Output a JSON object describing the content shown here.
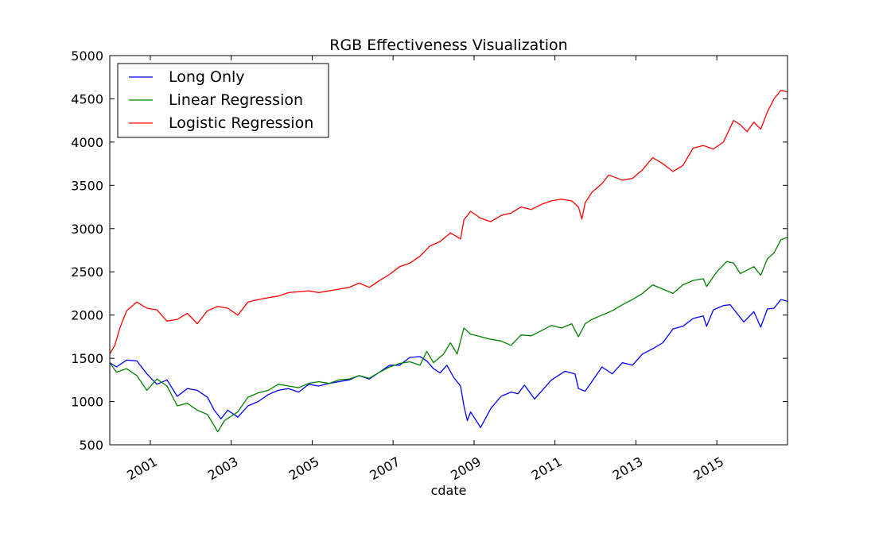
{
  "chart_data": {
    "type": "line",
    "title": "RGB Effectiveness Visualization",
    "xlabel": "cdate",
    "ylabel": "",
    "xlim": [
      "2000-01-01",
      "2016-09-30"
    ],
    "ylim": [
      500,
      5000
    ],
    "yticks": [
      500,
      1000,
      1500,
      2000,
      2500,
      3000,
      3500,
      4000,
      4500,
      5000
    ],
    "xticks": [
      "2001",
      "2003",
      "2005",
      "2007",
      "2009",
      "2011",
      "2013",
      "2015"
    ],
    "grid": false,
    "legend_position": "top-left",
    "series": [
      {
        "name": "Long Only",
        "color": "#0000ff",
        "points": [
          [
            "2000-01-01",
            1450
          ],
          [
            "2000-03-01",
            1400
          ],
          [
            "2000-06-01",
            1480
          ],
          [
            "2000-09-01",
            1470
          ],
          [
            "2000-12-01",
            1320
          ],
          [
            "2001-03-01",
            1200
          ],
          [
            "2001-06-01",
            1250
          ],
          [
            "2001-09-01",
            1060
          ],
          [
            "2001-12-01",
            1150
          ],
          [
            "2002-03-01",
            1130
          ],
          [
            "2002-06-01",
            1050
          ],
          [
            "2002-08-01",
            900
          ],
          [
            "2002-10-01",
            800
          ],
          [
            "2002-12-01",
            900
          ],
          [
            "2003-03-01",
            820
          ],
          [
            "2003-06-01",
            950
          ],
          [
            "2003-09-01",
            1000
          ],
          [
            "2003-12-01",
            1080
          ],
          [
            "2004-03-01",
            1130
          ],
          [
            "2004-06-01",
            1150
          ],
          [
            "2004-09-01",
            1110
          ],
          [
            "2004-12-01",
            1200
          ],
          [
            "2005-03-01",
            1180
          ],
          [
            "2005-06-01",
            1210
          ],
          [
            "2005-09-01",
            1230
          ],
          [
            "2005-12-01",
            1250
          ],
          [
            "2006-03-01",
            1300
          ],
          [
            "2006-06-01",
            1260
          ],
          [
            "2006-09-01",
            1340
          ],
          [
            "2006-12-01",
            1420
          ],
          [
            "2007-03-01",
            1420
          ],
          [
            "2007-06-01",
            1510
          ],
          [
            "2007-09-01",
            1520
          ],
          [
            "2007-11-01",
            1470
          ],
          [
            "2008-01-01",
            1380
          ],
          [
            "2008-03-01",
            1330
          ],
          [
            "2008-05-01",
            1420
          ],
          [
            "2008-07-01",
            1280
          ],
          [
            "2008-09-01",
            1180
          ],
          [
            "2008-10-01",
            950
          ],
          [
            "2008-11-01",
            780
          ],
          [
            "2008-12-01",
            880
          ],
          [
            "2009-03-01",
            700
          ],
          [
            "2009-06-01",
            920
          ],
          [
            "2009-09-01",
            1060
          ],
          [
            "2009-12-01",
            1110
          ],
          [
            "2010-02-01",
            1090
          ],
          [
            "2010-04-01",
            1190
          ],
          [
            "2010-07-01",
            1030
          ],
          [
            "2010-12-01",
            1250
          ],
          [
            "2011-04-01",
            1350
          ],
          [
            "2011-07-01",
            1320
          ],
          [
            "2011-08-01",
            1150
          ],
          [
            "2011-10-01",
            1120
          ],
          [
            "2012-03-01",
            1400
          ],
          [
            "2012-06-01",
            1320
          ],
          [
            "2012-09-01",
            1450
          ],
          [
            "2012-12-01",
            1420
          ],
          [
            "2013-03-01",
            1550
          ],
          [
            "2013-06-01",
            1610
          ],
          [
            "2013-09-01",
            1680
          ],
          [
            "2013-12-01",
            1840
          ],
          [
            "2014-03-01",
            1870
          ],
          [
            "2014-06-01",
            1960
          ],
          [
            "2014-09-01",
            1990
          ],
          [
            "2014-10-01",
            1870
          ],
          [
            "2014-12-01",
            2060
          ],
          [
            "2015-03-01",
            2110
          ],
          [
            "2015-05-01",
            2120
          ],
          [
            "2015-08-01",
            1970
          ],
          [
            "2015-09-01",
            1920
          ],
          [
            "2015-12-01",
            2040
          ],
          [
            "2016-02-01",
            1860
          ],
          [
            "2016-04-01",
            2070
          ],
          [
            "2016-06-01",
            2080
          ],
          [
            "2016-08-01",
            2180
          ],
          [
            "2016-09-30",
            2160
          ]
        ]
      },
      {
        "name": "Linear Regression",
        "color": "#008000",
        "points": [
          [
            "2000-01-01",
            1450
          ],
          [
            "2000-03-01",
            1340
          ],
          [
            "2000-06-01",
            1380
          ],
          [
            "2000-09-01",
            1300
          ],
          [
            "2000-12-01",
            1130
          ],
          [
            "2001-03-01",
            1260
          ],
          [
            "2001-06-01",
            1180
          ],
          [
            "2001-09-01",
            950
          ],
          [
            "2001-12-01",
            980
          ],
          [
            "2002-03-01",
            900
          ],
          [
            "2002-06-01",
            850
          ],
          [
            "2002-08-01",
            720
          ],
          [
            "2002-09-01",
            650
          ],
          [
            "2002-11-01",
            780
          ],
          [
            "2003-03-01",
            880
          ],
          [
            "2003-06-01",
            1050
          ],
          [
            "2003-09-01",
            1100
          ],
          [
            "2003-12-01",
            1130
          ],
          [
            "2004-03-01",
            1200
          ],
          [
            "2004-06-01",
            1180
          ],
          [
            "2004-09-01",
            1160
          ],
          [
            "2004-12-01",
            1210
          ],
          [
            "2005-03-01",
            1230
          ],
          [
            "2005-06-01",
            1210
          ],
          [
            "2005-09-01",
            1250
          ],
          [
            "2005-12-01",
            1260
          ],
          [
            "2006-03-01",
            1300
          ],
          [
            "2006-06-01",
            1270
          ],
          [
            "2006-09-01",
            1340
          ],
          [
            "2006-12-01",
            1400
          ],
          [
            "2007-03-01",
            1440
          ],
          [
            "2007-06-01",
            1460
          ],
          [
            "2007-09-01",
            1420
          ],
          [
            "2007-11-01",
            1580
          ],
          [
            "2008-01-01",
            1450
          ],
          [
            "2008-04-01",
            1550
          ],
          [
            "2008-06-01",
            1680
          ],
          [
            "2008-08-01",
            1550
          ],
          [
            "2008-10-01",
            1850
          ],
          [
            "2008-12-01",
            1780
          ],
          [
            "2009-03-01",
            1750
          ],
          [
            "2009-06-01",
            1720
          ],
          [
            "2009-09-01",
            1700
          ],
          [
            "2009-12-01",
            1650
          ],
          [
            "2010-03-01",
            1770
          ],
          [
            "2010-06-01",
            1760
          ],
          [
            "2010-09-01",
            1820
          ],
          [
            "2010-12-01",
            1880
          ],
          [
            "2011-03-01",
            1850
          ],
          [
            "2011-06-01",
            1900
          ],
          [
            "2011-08-01",
            1750
          ],
          [
            "2011-10-01",
            1900
          ],
          [
            "2011-12-01",
            1950
          ],
          [
            "2012-03-01",
            2000
          ],
          [
            "2012-06-01",
            2050
          ],
          [
            "2012-09-01",
            2120
          ],
          [
            "2012-12-01",
            2180
          ],
          [
            "2013-03-01",
            2250
          ],
          [
            "2013-06-01",
            2350
          ],
          [
            "2013-09-01",
            2300
          ],
          [
            "2013-12-01",
            2250
          ],
          [
            "2014-03-01",
            2350
          ],
          [
            "2014-06-01",
            2400
          ],
          [
            "2014-09-01",
            2420
          ],
          [
            "2014-10-01",
            2330
          ],
          [
            "2015-01-01",
            2500
          ],
          [
            "2015-04-01",
            2620
          ],
          [
            "2015-06-01",
            2600
          ],
          [
            "2015-08-01",
            2480
          ],
          [
            "2015-12-01",
            2560
          ],
          [
            "2016-02-01",
            2460
          ],
          [
            "2016-04-01",
            2650
          ],
          [
            "2016-06-01",
            2720
          ],
          [
            "2016-08-01",
            2870
          ],
          [
            "2016-09-30",
            2900
          ]
        ]
      },
      {
        "name": "Logistic Regression",
        "color": "#ff0000",
        "points": [
          [
            "2000-01-01",
            1550
          ],
          [
            "2000-02-15",
            1650
          ],
          [
            "2000-04-01",
            1850
          ],
          [
            "2000-06-01",
            2050
          ],
          [
            "2000-09-01",
            2150
          ],
          [
            "2000-12-01",
            2080
          ],
          [
            "2001-03-01",
            2060
          ],
          [
            "2001-06-01",
            1930
          ],
          [
            "2001-09-01",
            1950
          ],
          [
            "2001-12-01",
            2020
          ],
          [
            "2002-03-01",
            1900
          ],
          [
            "2002-06-01",
            2050
          ],
          [
            "2002-09-01",
            2100
          ],
          [
            "2002-12-01",
            2080
          ],
          [
            "2003-03-01",
            2000
          ],
          [
            "2003-06-01",
            2150
          ],
          [
            "2003-09-01",
            2180
          ],
          [
            "2003-12-01",
            2200
          ],
          [
            "2004-03-01",
            2220
          ],
          [
            "2004-06-01",
            2260
          ],
          [
            "2004-09-01",
            2270
          ],
          [
            "2004-12-01",
            2280
          ],
          [
            "2005-03-01",
            2260
          ],
          [
            "2005-06-01",
            2280
          ],
          [
            "2005-09-01",
            2300
          ],
          [
            "2005-12-01",
            2320
          ],
          [
            "2006-03-01",
            2370
          ],
          [
            "2006-06-01",
            2320
          ],
          [
            "2006-09-01",
            2400
          ],
          [
            "2006-12-01",
            2470
          ],
          [
            "2007-03-01",
            2560
          ],
          [
            "2007-06-01",
            2600
          ],
          [
            "2007-09-01",
            2680
          ],
          [
            "2007-12-01",
            2800
          ],
          [
            "2008-03-01",
            2850
          ],
          [
            "2008-06-01",
            2950
          ],
          [
            "2008-09-01",
            2880
          ],
          [
            "2008-10-01",
            3100
          ],
          [
            "2008-12-01",
            3200
          ],
          [
            "2009-03-01",
            3120
          ],
          [
            "2009-06-01",
            3080
          ],
          [
            "2009-09-01",
            3150
          ],
          [
            "2009-12-01",
            3180
          ],
          [
            "2010-03-01",
            3250
          ],
          [
            "2010-06-01",
            3220
          ],
          [
            "2010-09-01",
            3280
          ],
          [
            "2010-12-01",
            3320
          ],
          [
            "2011-03-01",
            3340
          ],
          [
            "2011-06-01",
            3320
          ],
          [
            "2011-08-01",
            3250
          ],
          [
            "2011-09-01",
            3110
          ],
          [
            "2011-10-01",
            3300
          ],
          [
            "2011-12-01",
            3420
          ],
          [
            "2012-03-01",
            3520
          ],
          [
            "2012-05-01",
            3620
          ],
          [
            "2012-09-01",
            3560
          ],
          [
            "2012-12-01",
            3580
          ],
          [
            "2013-03-01",
            3680
          ],
          [
            "2013-06-01",
            3820
          ],
          [
            "2013-09-01",
            3750
          ],
          [
            "2013-12-01",
            3660
          ],
          [
            "2014-03-01",
            3730
          ],
          [
            "2014-06-01",
            3930
          ],
          [
            "2014-09-01",
            3960
          ],
          [
            "2014-12-01",
            3920
          ],
          [
            "2015-03-01",
            4000
          ],
          [
            "2015-06-01",
            4250
          ],
          [
            "2015-08-01",
            4200
          ],
          [
            "2015-10-01",
            4120
          ],
          [
            "2015-12-01",
            4230
          ],
          [
            "2016-02-01",
            4150
          ],
          [
            "2016-04-01",
            4350
          ],
          [
            "2016-06-01",
            4500
          ],
          [
            "2016-08-01",
            4600
          ],
          [
            "2016-09-30",
            4580
          ]
        ]
      }
    ]
  }
}
